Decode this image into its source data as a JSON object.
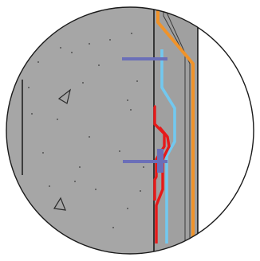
{
  "diagram": {
    "kind": "circular detail callout",
    "colors": {
      "background": "#ffffff",
      "concrete_fill": "#a6a6a6",
      "outline": "#1a1a1a",
      "aggregate_mark": "#3a3a3a",
      "orange_line": "#f0932a",
      "light_blue_line": "#72c8ef",
      "red_line": "#e61919",
      "blue_marker": "#6b6fb8"
    },
    "layers": [
      {
        "name": "concrete-wall",
        "hatch": "concrete-aggregate"
      },
      {
        "name": "interior-cavity",
        "fill": "gray"
      },
      {
        "name": "exterior-void",
        "fill": "white"
      }
    ],
    "lines": [
      {
        "name": "orange-line",
        "color_key": "orange_line"
      },
      {
        "name": "light-blue-line",
        "color_key": "light_blue_line"
      },
      {
        "name": "red-line",
        "color_key": "red_line"
      }
    ],
    "markers": [
      {
        "name": "blue-marker-upper",
        "color_key": "blue_marker"
      },
      {
        "name": "blue-marker-lower",
        "color_key": "blue_marker"
      }
    ]
  }
}
